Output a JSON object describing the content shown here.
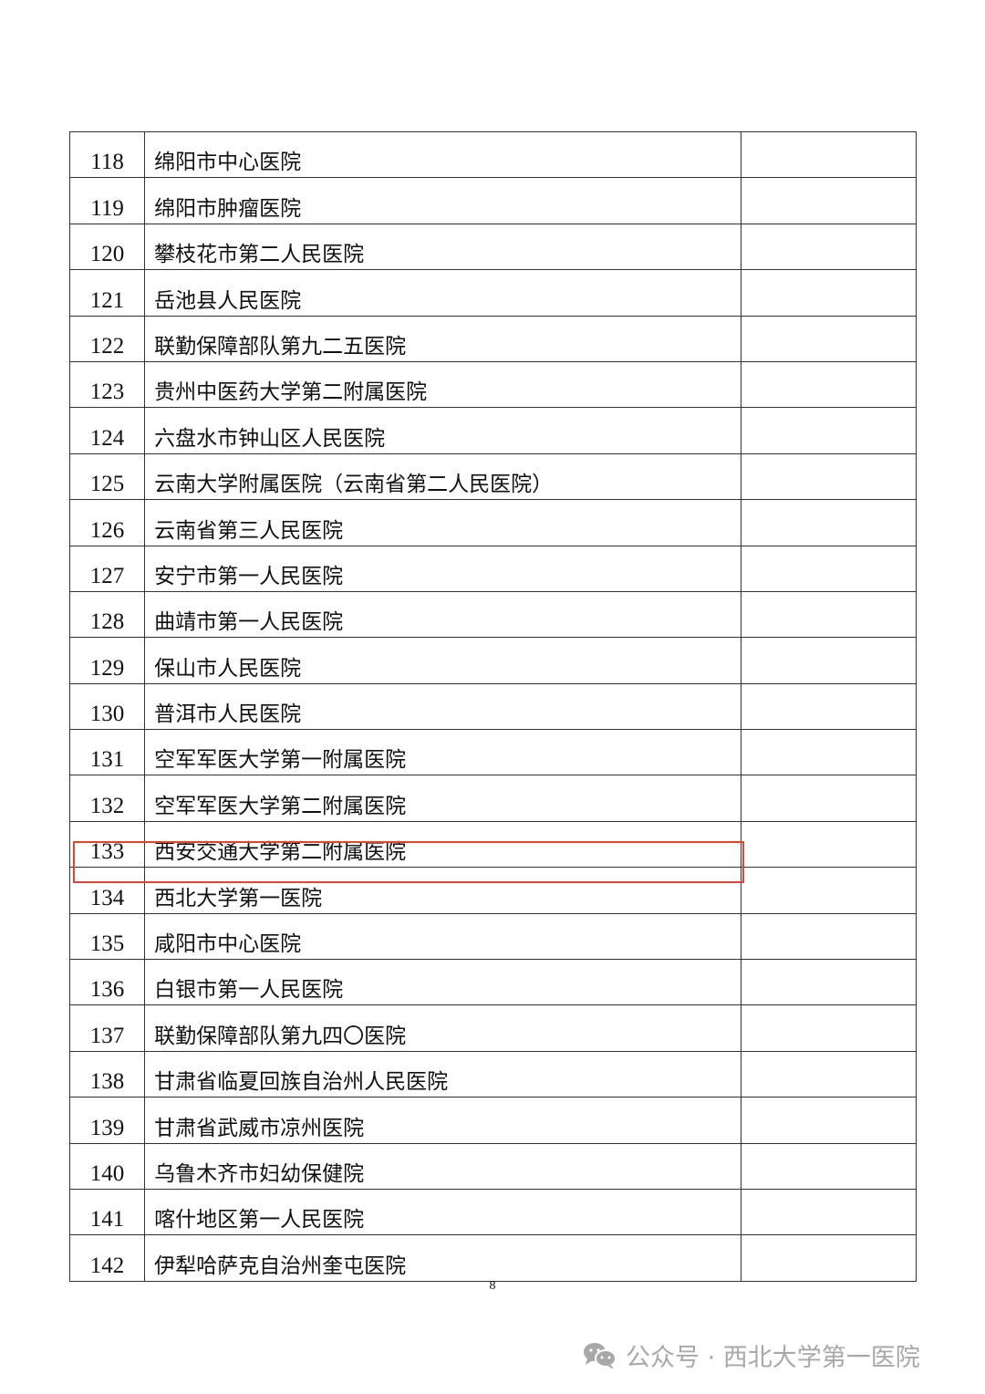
{
  "table": {
    "rows": [
      {
        "no": "118",
        "name": "绵阳市中心医院"
      },
      {
        "no": "119",
        "name": "绵阳市肿瘤医院"
      },
      {
        "no": "120",
        "name": "攀枝花市第二人民医院"
      },
      {
        "no": "121",
        "name": "岳池县人民医院"
      },
      {
        "no": "122",
        "name": "联勤保障部队第九二五医院"
      },
      {
        "no": "123",
        "name": "贵州中医药大学第二附属医院"
      },
      {
        "no": "124",
        "name": "六盘水市钟山区人民医院"
      },
      {
        "no": "125",
        "name": "云南大学附属医院（云南省第二人民医院）"
      },
      {
        "no": "126",
        "name": "云南省第三人民医院"
      },
      {
        "no": "127",
        "name": "安宁市第一人民医院"
      },
      {
        "no": "128",
        "name": "曲靖市第一人民医院"
      },
      {
        "no": "129",
        "name": "保山市人民医院"
      },
      {
        "no": "130",
        "name": "普洱市人民医院"
      },
      {
        "no": "131",
        "name": "空军军医大学第一附属医院"
      },
      {
        "no": "132",
        "name": "空军军医大学第二附属医院"
      },
      {
        "no": "133",
        "name": "西安交通大学第二附属医院"
      },
      {
        "no": "134",
        "name": "西北大学第一医院",
        "highlighted": true
      },
      {
        "no": "135",
        "name": "咸阳市中心医院"
      },
      {
        "no": "136",
        "name": "白银市第一人民医院"
      },
      {
        "no": "137",
        "name": "联勤保障部队第九四〇医院"
      },
      {
        "no": "138",
        "name": "甘肃省临夏回族自治州人民医院"
      },
      {
        "no": "139",
        "name": "甘肃省武威市凉州医院"
      },
      {
        "no": "140",
        "name": "乌鲁木齐市妇幼保健院"
      },
      {
        "no": "141",
        "name": "喀什地区第一人民医院"
      },
      {
        "no": "142",
        "name": "伊犁哈萨克自治州奎屯医院"
      }
    ]
  },
  "highlight_color": "#e0452e",
  "page_number": "8",
  "watermark": {
    "icon": "wechat-icon",
    "text": "公众号 · 西北大学第一医院"
  }
}
